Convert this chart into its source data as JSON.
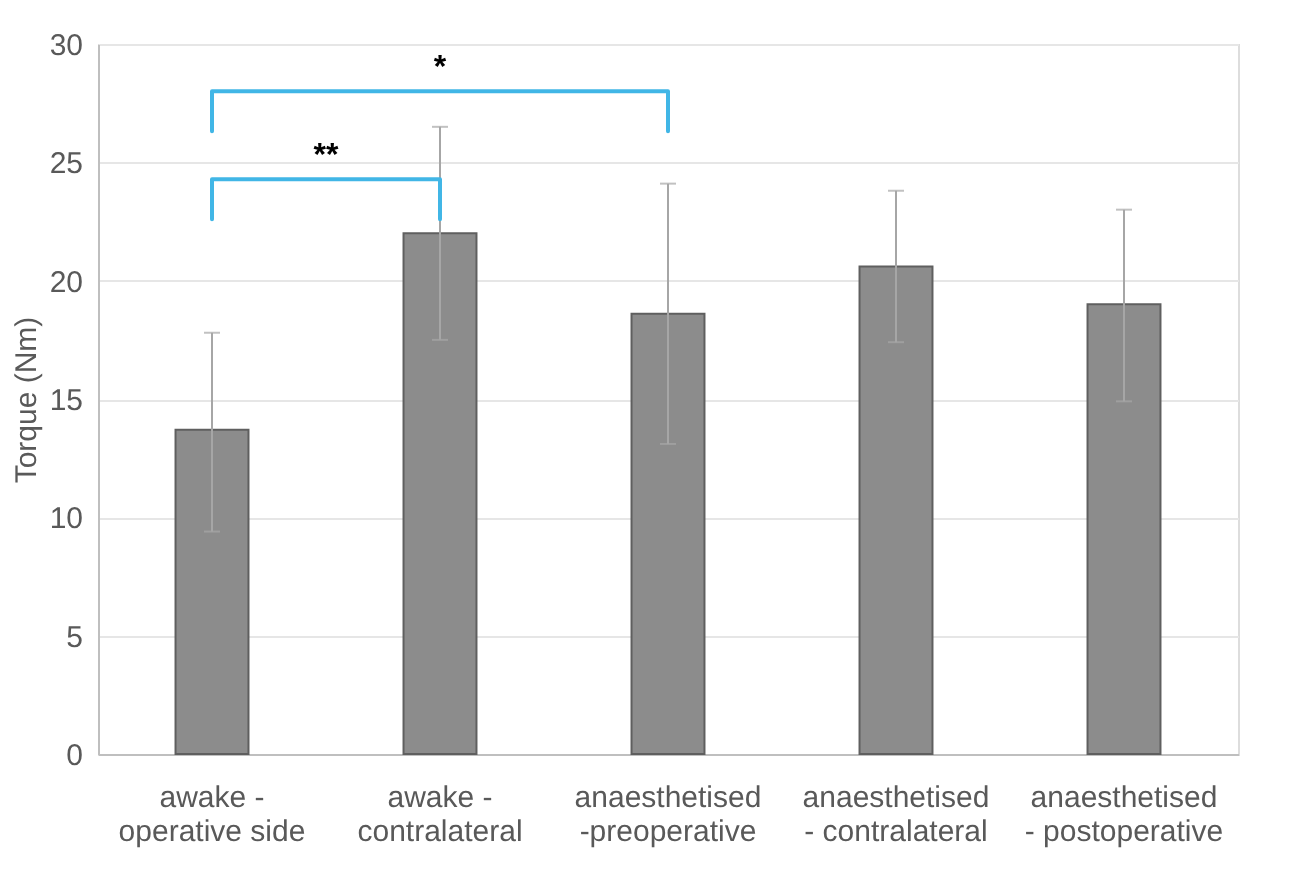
{
  "chart_data": {
    "type": "bar",
    "ylabel": "Torque (Nm)",
    "categories": [
      "awake -\noperative side",
      "awake -\ncontralateral",
      "anaesthetised\n-preoperative",
      "anaesthetised\n- contralateral",
      "anaesthetised\n- postoperative"
    ],
    "values": [
      13.7,
      22.0,
      18.6,
      20.6,
      19.0
    ],
    "errors": [
      [
        9.4,
        17.8
      ],
      [
        17.5,
        26.5
      ],
      [
        13.1,
        24.1
      ],
      [
        17.4,
        23.8
      ],
      [
        14.9,
        23.0
      ]
    ],
    "color": "#8c8c8c",
    "ylim": [
      0,
      30
    ],
    "yticks": [
      0,
      5,
      10,
      15,
      20,
      25,
      30
    ],
    "grid": "y",
    "annotations": [
      "**",
      "*"
    ]
  }
}
